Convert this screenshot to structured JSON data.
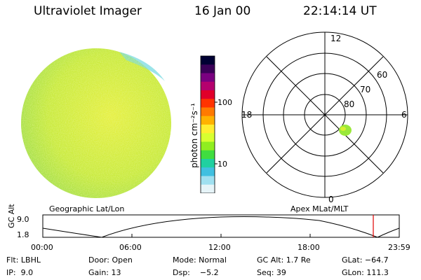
{
  "header": {
    "title": "Ultraviolet Imager",
    "date": "16 Jan 00",
    "time": "22:14:14 UT"
  },
  "colorbar": {
    "unit_label": "photon cm⁻²s⁻¹",
    "tick_100": "100",
    "tick_10": "10",
    "colors": [
      "#000033",
      "#3b0058",
      "#7a0080",
      "#b5006e",
      "#e0002a",
      "#ff3300",
      "#ff7a00",
      "#ffb200",
      "#ffee30",
      "#d8ff30",
      "#90ee20",
      "#40dd40",
      "#20d0a0",
      "#40c0e0",
      "#a0e0f0",
      "#e6f4f8"
    ]
  },
  "left_panel": {
    "caption": "Geographic Lat/Lon"
  },
  "polar_plot": {
    "caption": "Apex MLat/MLT",
    "mlt_labels": {
      "top": "12",
      "left": "18",
      "right": "6",
      "bottom": "0"
    },
    "lat_labels": [
      "60",
      "70",
      "80"
    ]
  },
  "altitude_plot": {
    "ylabel": "GC Alt",
    "y_ticks": [
      "9.0",
      "1.8"
    ],
    "x_ticks": [
      "00:00",
      "06:00",
      "12:00",
      "18:00",
      "23:59"
    ],
    "marker_color": "#e00000"
  },
  "info": {
    "row1": {
      "flt": "Flt: LBHL",
      "door": "Door: Open",
      "mode": "Mode: Normal",
      "gcalt": "GC Alt: 1.7 Re",
      "glat": "GLat: −64.7"
    },
    "row2": {
      "ip": "IP:  9.0",
      "gain": "Gain: 13",
      "dsp": "Dsp:    −5.2",
      "seq": "Seq: 39",
      "glon": "GLon: 111.3"
    }
  }
}
